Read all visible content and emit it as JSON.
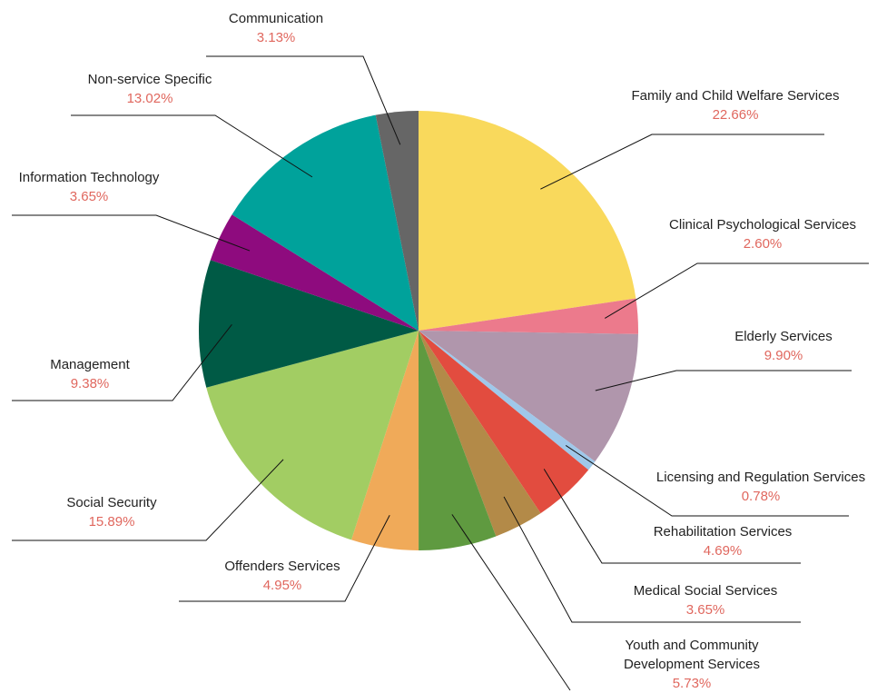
{
  "chart_data": {
    "type": "pie",
    "categories": [
      "Family and Child Welfare Services",
      "Clinical Psychological Services",
      "Elderly Services",
      "Licensing and Regulation Services",
      "Rehabilitation Services",
      "Medical Social Services",
      "Youth and Community Development Services",
      "Offenders Services",
      "Social Security",
      "Management",
      "Information Technology",
      "Non-service Specific",
      "Communication"
    ],
    "values": [
      22.66,
      2.6,
      9.9,
      0.78,
      4.69,
      3.65,
      5.73,
      4.95,
      15.89,
      9.38,
      3.65,
      13.02,
      3.13
    ],
    "value_labels": [
      "22.66%",
      "2.60%",
      "9.90%",
      "0.78%",
      "4.69%",
      "3.65%",
      "5.73%",
      "4.95%",
      "15.89%",
      "9.38%",
      "3.65%",
      "13.02%",
      "3.13%"
    ],
    "colors": [
      "#f9d95c",
      "#ec7a8c",
      "#b096ac",
      "#9fc8ea",
      "#e24c3f",
      "#b38a48",
      "#5f9a40",
      "#f0aa59",
      "#a2cd63",
      "#005a45",
      "#8e0b7e",
      "#00a29b",
      "#666666"
    ]
  }
}
